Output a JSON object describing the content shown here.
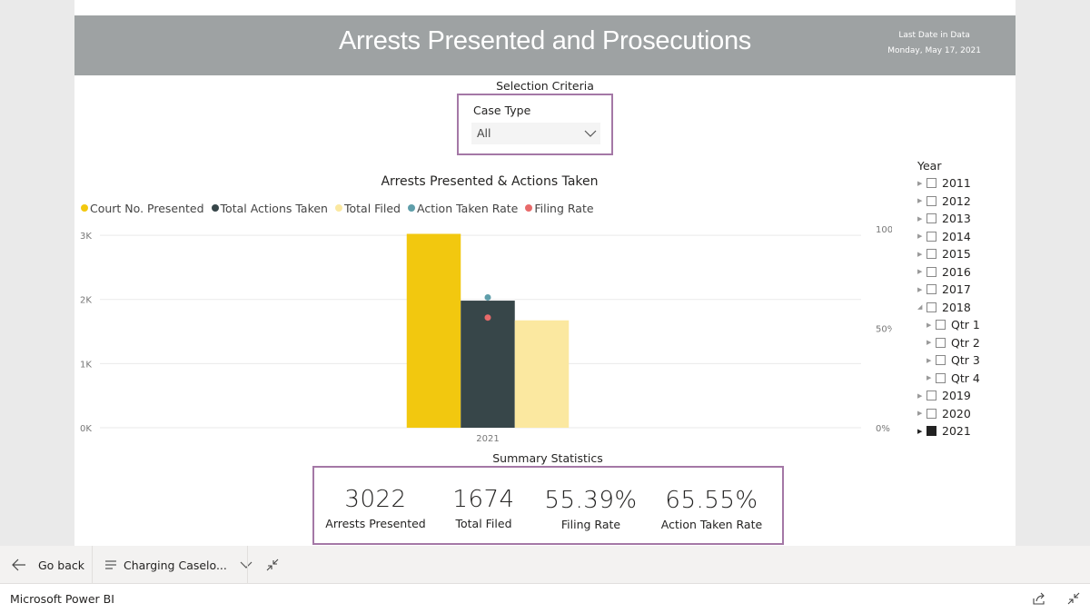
{
  "report": {
    "title": "Arrests Presented and Prosecutions",
    "last_date_label": "Last Date in Data",
    "last_date_value": "Monday, May 17, 2021"
  },
  "selection": {
    "title": "Selection Criteria",
    "case_type_label": "Case Type",
    "case_type_value": "All"
  },
  "chart_data": {
    "type": "bar",
    "title": "Arrests Presented & Actions Taken",
    "categories": [
      "2021"
    ],
    "series": [
      {
        "name": "Court No. Presented",
        "kind": "bar",
        "axis": "left",
        "color": "#f2c80f",
        "values": [
          3022
        ]
      },
      {
        "name": "Total Actions Taken",
        "kind": "bar",
        "axis": "left",
        "color": "#374649",
        "values": [
          1981
        ]
      },
      {
        "name": "Total Filed",
        "kind": "bar",
        "axis": "left",
        "color": "#fbe8a0",
        "values": [
          1674
        ]
      },
      {
        "name": "Action Taken Rate",
        "kind": "point",
        "axis": "right",
        "color": "#5f9eaa",
        "values": [
          65.55
        ]
      },
      {
        "name": "Filing Rate",
        "kind": "point",
        "axis": "right",
        "color": "#e86a6a",
        "values": [
          55.39
        ]
      }
    ],
    "y_left": {
      "ticks": [
        "0K",
        "1K",
        "2K",
        "3K"
      ],
      "tick_values": [
        0,
        1000,
        2000,
        3000
      ],
      "range": [
        0,
        3100
      ]
    },
    "y_right": {
      "ticks": [
        "0%",
        "50%",
        "100%"
      ],
      "tick_values": [
        0,
        50,
        100
      ],
      "range": [
        0,
        100
      ]
    },
    "xlabel": "",
    "ylabel": ""
  },
  "summary": {
    "title": "Summary Statistics",
    "stats": [
      {
        "value": "3022",
        "label": "Arrests Presented"
      },
      {
        "value": "1674",
        "label": "Total Filed"
      },
      {
        "value": "55.39%",
        "label": "Filing Rate"
      },
      {
        "value": "65.55%",
        "label": "Action Taken Rate"
      }
    ]
  },
  "year_slicer": {
    "title": "Year",
    "years": [
      "2011",
      "2012",
      "2013",
      "2014",
      "2015",
      "2016",
      "2017",
      "2018"
    ],
    "quarters": [
      "Qtr 1",
      "Qtr 2",
      "Qtr 3",
      "Qtr 4"
    ],
    "later_years": [
      "2019",
      "2020"
    ],
    "selected_year": "2021"
  },
  "bottom_bar": {
    "go_back": "Go back",
    "page_name": "Charging Caselo..."
  },
  "app_bar": {
    "name": "Microsoft Power BI"
  },
  "colors": {
    "header_bg": "#9ea2a3",
    "border_accent": "#a478a6"
  }
}
